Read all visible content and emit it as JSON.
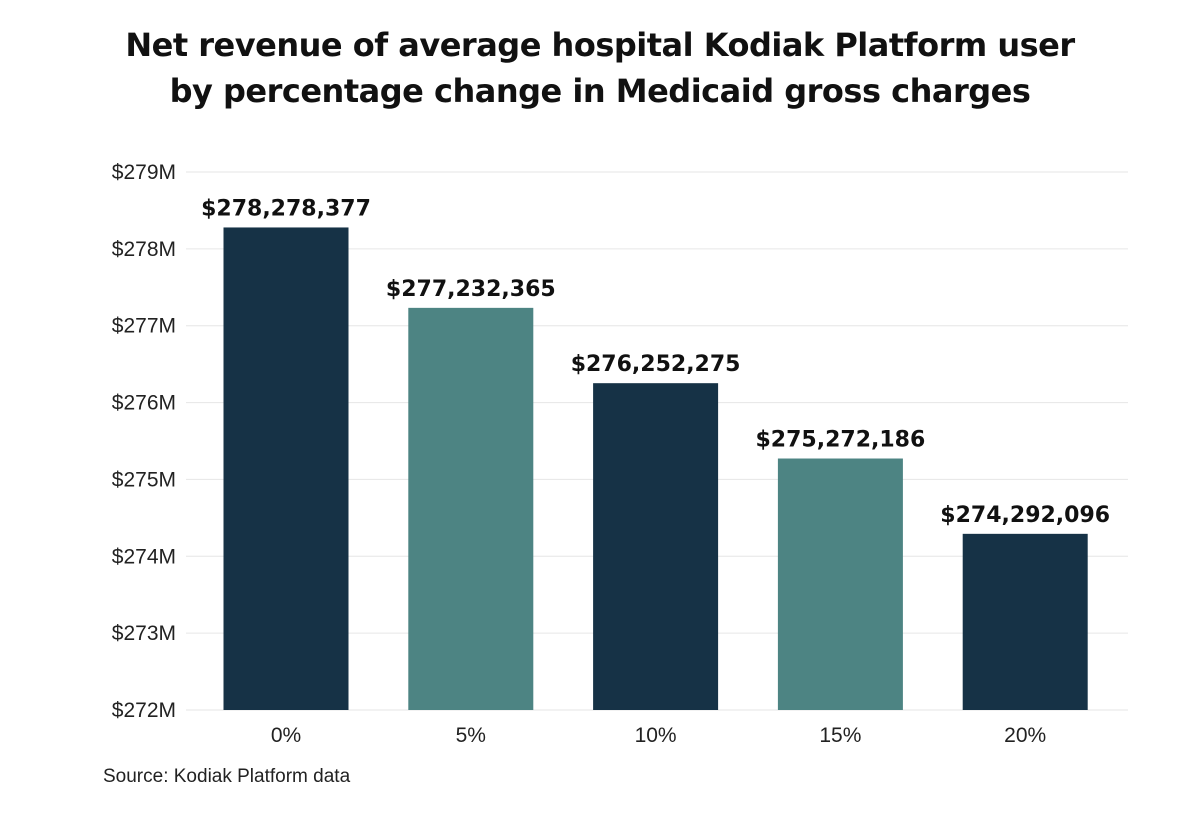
{
  "chart_data": {
    "type": "bar",
    "title_lines": [
      "Net revenue of average hospital Kodiak Platform user",
      "by percentage change in Medicaid gross charges"
    ],
    "categories": [
      "0%",
      "5%",
      "10%",
      "15%",
      "20%"
    ],
    "values": [
      278278377,
      277232365,
      276252275,
      275272186,
      274292096
    ],
    "data_labels": [
      "$278,278,377",
      "$277,232,365",
      "$276,252,275",
      "$275,272,186",
      "$274,292,096"
    ],
    "ylim": [
      272000000,
      279000000
    ],
    "yticks": [
      272000000,
      273000000,
      274000000,
      275000000,
      276000000,
      277000000,
      278000000,
      279000000
    ],
    "ytick_labels": [
      "$272M",
      "$273M",
      "$274M",
      "$275M",
      "$276M",
      "$277M",
      "$278M",
      "$279M"
    ],
    "bar_colors": [
      "#163246",
      "#4d8483",
      "#163246",
      "#4d8483",
      "#163246"
    ],
    "grid": true,
    "legend": "none",
    "source": "Source: Kodiak Platform data"
  }
}
